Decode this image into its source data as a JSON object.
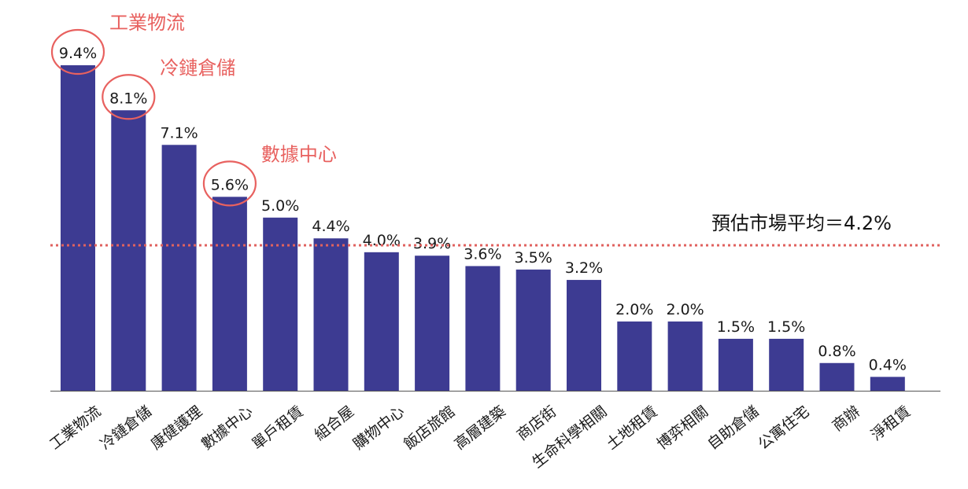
{
  "chart_data": {
    "type": "bar",
    "categories": [
      "工業物流",
      "冷鏈倉儲",
      "康健護理",
      "數據中心",
      "單戶租賃",
      "組合屋",
      "購物中心",
      "飯店旅館",
      "高層建築",
      "商店街",
      "生命科學相關",
      "土地租賃",
      "博弈相關",
      "自助倉儲",
      "公寓住宅",
      "商辦",
      "淨租賃"
    ],
    "values": [
      9.4,
      8.1,
      7.1,
      5.6,
      5.0,
      4.4,
      4.0,
      3.9,
      3.6,
      3.5,
      3.2,
      2.0,
      2.0,
      1.5,
      1.5,
      0.8,
      0.4
    ],
    "value_labels": [
      "9.4%",
      "8.1%",
      "7.1%",
      "5.6%",
      "5.0%",
      "4.4%",
      "4.0%",
      "3.9%",
      "3.6%",
      "3.5%",
      "3.2%",
      "2.0%",
      "2.0%",
      "1.5%",
      "1.5%",
      "0.8%",
      "0.4%"
    ],
    "ylim": [
      0,
      9.4
    ],
    "bar_color": "#3d3b92",
    "reference_line": {
      "value": 4.2,
      "label": "預估市場平均＝4.2%",
      "color": "#e0625f",
      "style": "dotted"
    },
    "highlights": [
      {
        "index": 0,
        "label": "工業物流"
      },
      {
        "index": 1,
        "label": "冷鏈倉儲"
      },
      {
        "index": 3,
        "label": "數據中心"
      }
    ],
    "highlight_color": "#e8615f",
    "grid": false,
    "legend": "none"
  }
}
